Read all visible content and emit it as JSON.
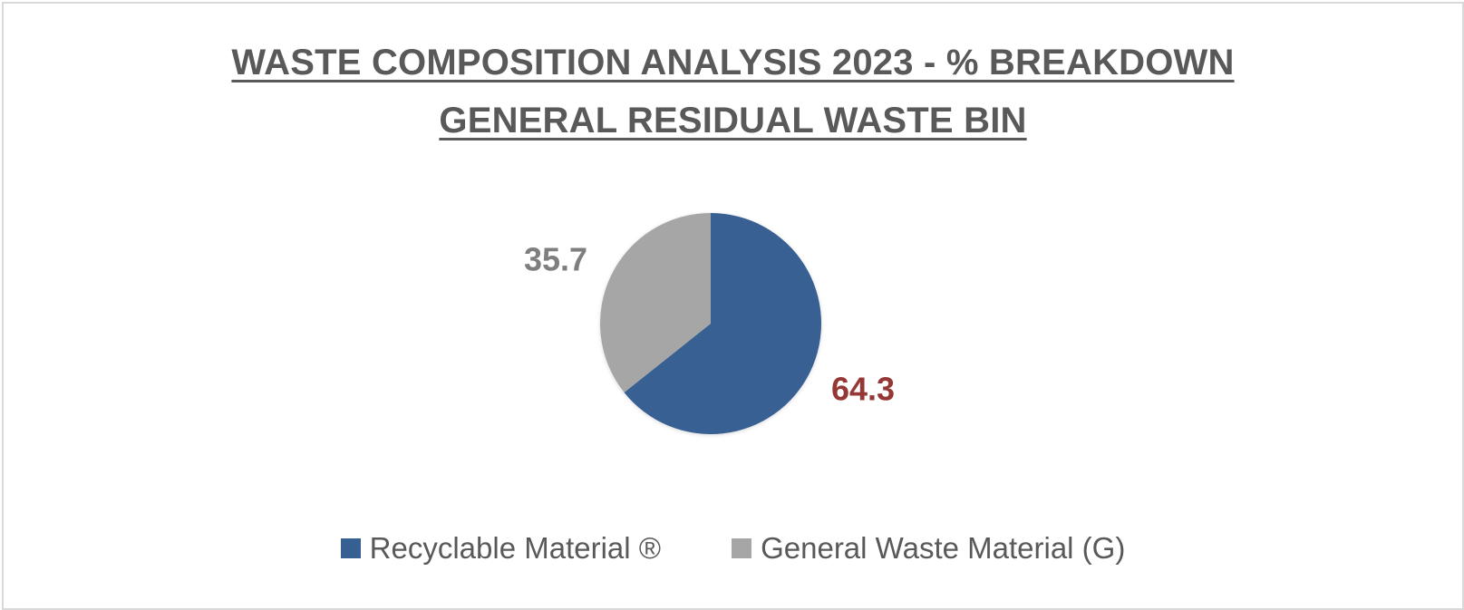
{
  "chart_data": {
    "type": "pie",
    "title_lines": [
      "WASTE COMPOSITION ANALYSIS 2023 - % BREAKDOWN",
      "GENERAL RESIDUAL WASTE BIN"
    ],
    "categories": [
      "Recyclable Material ®",
      "General Waste Material (G)"
    ],
    "values": [
      64.3,
      35.7
    ],
    "data_labels": [
      "64.3",
      "35.7"
    ],
    "colors": [
      "#376092",
      "#a6a6a6"
    ],
    "label_colors": [
      "#953735",
      "#7f7f7f"
    ],
    "legend_position": "bottom"
  }
}
